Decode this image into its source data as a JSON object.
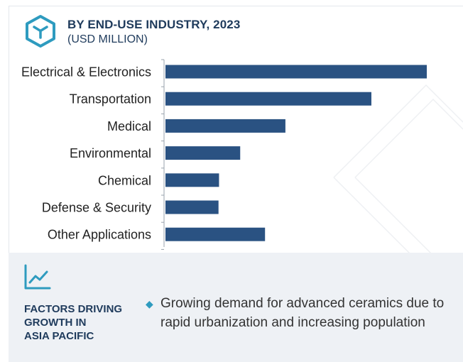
{
  "header": {
    "title": "BY END-USE INDUSTRY, 2023",
    "subtitle": "(USD MILLION)",
    "icon": "cube-icon"
  },
  "chart_data": {
    "type": "bar",
    "orientation": "horizontal",
    "categories": [
      "Electrical & Electronics",
      "Transportation",
      "Medical",
      "Environmental",
      "Chemical",
      "Defense & Security",
      "Other Applications"
    ],
    "values": [
      100,
      78.8,
      45.9,
      28.6,
      20.5,
      20.3,
      38.1
    ],
    "bar_color": "#2a5282",
    "xlim": [
      0,
      100
    ],
    "grid": false,
    "legend": "none"
  },
  "factors": {
    "title_lines": [
      "FACTORS DRIVING",
      "GROWTH IN",
      "ASIA PACIFIC"
    ],
    "icon": "line-chart-icon",
    "bullet": "Growing demand for advanced ceramics due to rapid urbanization and increasing population"
  },
  "colors": {
    "accent": "#2e9bbf",
    "title": "#1f3b5c",
    "bar": "#2a5282",
    "panel": "#eef1f5"
  }
}
